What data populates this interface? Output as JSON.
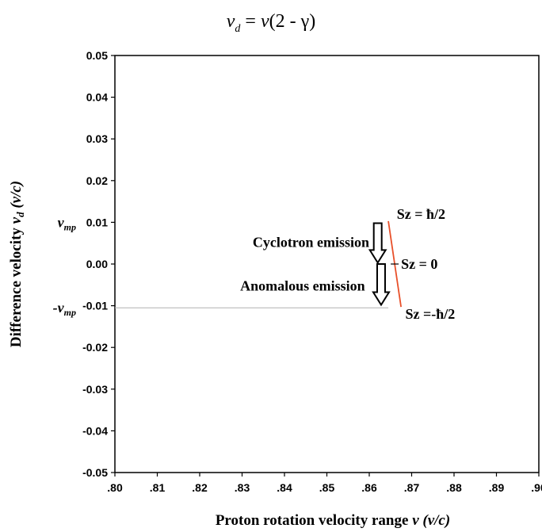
{
  "chart_data": {
    "type": "line",
    "title": {
      "lhs": "v",
      "lhs_sub": "d",
      "rhs_v": "v",
      "rhs_rest": "(2 - γ)"
    },
    "xlabel": {
      "main": "Proton rotation velocity range",
      "var": "v",
      "units": "(v/c)"
    },
    "ylabel": {
      "main": "Difference velocity",
      "var": "v",
      "var_sub": "d",
      "units": "(v/c)"
    },
    "xlim": [
      0.8,
      0.9
    ],
    "ylim": [
      -0.05,
      0.05
    ],
    "x_ticks": [
      {
        "value": 0.8,
        "label": ".80"
      },
      {
        "value": 0.81,
        "label": ".81"
      },
      {
        "value": 0.82,
        "label": ".82"
      },
      {
        "value": 0.83,
        "label": ".83"
      },
      {
        "value": 0.84,
        "label": ".84"
      },
      {
        "value": 0.85,
        "label": ".85"
      },
      {
        "value": 0.86,
        "label": ".86"
      },
      {
        "value": 0.87,
        "label": ".87"
      },
      {
        "value": 0.88,
        "label": ".88"
      },
      {
        "value": 0.89,
        "label": ".89"
      },
      {
        "value": 0.9,
        "label": ".90"
      }
    ],
    "y_ticks": [
      {
        "value": 0.05,
        "label": "0.05"
      },
      {
        "value": 0.04,
        "label": "0.04"
      },
      {
        "value": 0.03,
        "label": "0.03"
      },
      {
        "value": 0.02,
        "label": "0.02"
      },
      {
        "value": 0.01,
        "label": "0.01"
      },
      {
        "value": 0.0,
        "label": "0.00"
      },
      {
        "value": -0.01,
        "label": "-0.01"
      },
      {
        "value": -0.02,
        "label": "-0.02"
      },
      {
        "value": -0.03,
        "label": "-0.03"
      },
      {
        "value": -0.04,
        "label": "-0.04"
      },
      {
        "value": -0.05,
        "label": "-0.05"
      }
    ],
    "series": [
      {
        "color": "#e8502a",
        "x": [
          0.8645,
          0.8675
        ],
        "y": [
          0.0103,
          -0.0103
        ]
      }
    ],
    "reference_line": {
      "y": -0.0105,
      "x_from": 0.8,
      "x_to": 0.8645,
      "color": "#b0b0b0"
    },
    "center_mark": {
      "x": 0.866,
      "y": 0.0
    },
    "vmp_labels": {
      "pos": "v",
      "neg": "-v",
      "sub": "mp"
    },
    "spin_labels": [
      {
        "text": "Sz = ħ/2",
        "x": 0.8665,
        "y": 0.012
      },
      {
        "text": "Sz = 0",
        "x": 0.8675,
        "y": 0.0
      },
      {
        "text": "Sz =-ħ/2",
        "x": 0.8685,
        "y": -0.012
      }
    ],
    "emission_annotations": [
      {
        "text": "Cyclotron emission",
        "x": 0.86,
        "y": 0.0052,
        "arrow_x": 0.862,
        "arrow_y_from": 0.0098,
        "arrow_y_to": 0.0003
      },
      {
        "text": "Anomalous emission",
        "x": 0.859,
        "y": -0.0052,
        "arrow_x": 0.8628,
        "arrow_y_from": 0.0,
        "arrow_y_to": -0.0098
      }
    ]
  }
}
